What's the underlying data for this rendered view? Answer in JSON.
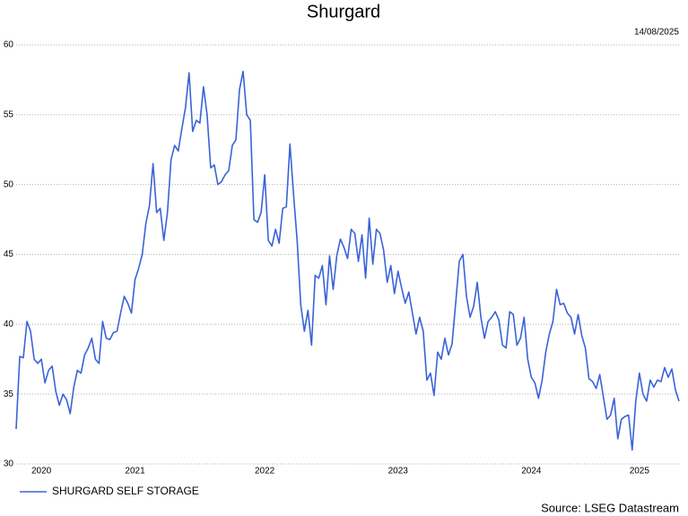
{
  "chart_data": {
    "type": "line",
    "title": "Shurgard",
    "date": "14/08/2025",
    "source": "Source: LSEG Datastream",
    "categories": [
      null,
      null,
      null,
      null,
      null,
      null,
      null,
      "2020",
      null,
      null,
      null,
      null,
      null,
      null,
      null,
      null,
      null,
      null,
      null,
      null,
      null,
      null,
      null,
      null,
      null,
      null,
      null,
      null,
      null,
      null,
      null,
      null,
      null,
      "2021",
      null,
      null,
      null,
      null,
      null,
      null,
      null,
      null,
      null,
      null,
      null,
      null,
      null,
      null,
      null,
      null,
      null,
      null,
      null,
      null,
      null,
      null,
      null,
      null,
      null,
      null,
      null,
      null,
      null,
      null,
      null,
      null,
      null,
      null,
      null,
      "2022",
      null,
      null,
      null,
      null,
      null,
      null,
      null,
      null,
      null,
      null,
      null,
      null,
      null,
      null,
      null,
      null,
      null,
      null,
      null,
      null,
      null,
      null,
      null,
      null,
      null,
      null,
      null,
      null,
      null,
      null,
      null,
      null,
      null,
      null,
      null,
      null,
      "2023",
      null,
      null,
      null,
      null,
      null,
      null,
      null,
      null,
      null,
      null,
      null,
      null,
      null,
      null,
      null,
      null,
      null,
      null,
      null,
      null,
      null,
      null,
      null,
      null,
      null,
      null,
      null,
      null,
      null,
      null,
      null,
      null,
      null,
      null,
      null,
      null,
      "2024",
      null,
      null,
      null,
      null,
      null,
      null,
      null,
      null,
      null,
      null,
      null,
      null,
      null,
      null,
      null,
      null,
      null,
      null,
      null,
      null,
      null,
      null,
      null,
      null,
      null,
      null,
      null,
      null,
      null,
      "2025",
      null,
      null,
      null,
      null,
      null,
      null,
      null,
      null,
      null,
      null,
      null
    ],
    "series": [
      {
        "name": "SHURGARD SELF STORAGE",
        "color": "#3a63d8",
        "values": [
          32.5,
          37.7,
          37.6,
          40.2,
          39.5,
          37.5,
          37.2,
          37.5,
          35.8,
          36.7,
          37.0,
          35.2,
          34.2,
          35.0,
          34.6,
          33.6,
          35.5,
          36.7,
          36.5,
          37.8,
          38.3,
          39.0,
          37.5,
          37.2,
          40.2,
          39.0,
          38.9,
          39.4,
          39.5,
          40.8,
          42.0,
          41.5,
          40.8,
          43.2,
          44.0,
          45.0,
          47.2,
          48.5,
          51.5,
          48.0,
          48.3,
          46.0,
          48.0,
          51.8,
          52.8,
          52.4,
          54.0,
          55.5,
          58.0,
          53.8,
          54.6,
          54.4,
          57.0,
          55.0,
          51.2,
          51.4,
          50.0,
          50.2,
          50.7,
          51.0,
          52.8,
          53.2,
          56.8,
          58.1,
          55.0,
          54.6,
          47.5,
          47.3,
          48.0,
          50.7,
          46.0,
          45.6,
          46.8,
          45.8,
          48.3,
          48.4,
          52.9,
          49.3,
          46.0,
          41.4,
          39.5,
          41.0,
          38.5,
          43.5,
          43.3,
          44.2,
          41.4,
          44.9,
          42.5,
          44.9,
          46.1,
          45.5,
          44.7,
          46.8,
          46.5,
          44.5,
          46.4,
          43.3,
          47.6,
          44.3,
          46.8,
          46.5,
          45.3,
          43.0,
          44.2,
          42.2,
          43.8,
          42.6,
          41.5,
          42.3,
          40.8,
          39.3,
          40.5,
          39.5,
          36.0,
          36.5,
          34.9,
          38.0,
          37.5,
          39.0,
          37.8,
          38.6,
          41.5,
          44.5,
          45.0,
          42.0,
          40.5,
          41.3,
          43.0,
          40.5,
          39.0,
          40.2,
          40.5,
          40.9,
          40.3,
          38.5,
          38.3,
          40.9,
          40.7,
          38.5,
          39.0,
          40.5,
          37.5,
          36.2,
          35.8,
          34.7,
          36.0,
          38.0,
          39.3,
          40.2,
          42.5,
          41.4,
          41.5,
          40.8,
          40.5,
          39.3,
          40.7,
          39.2,
          38.3,
          36.1,
          35.9,
          35.4,
          36.4,
          34.8,
          33.2,
          33.5,
          34.7,
          31.8,
          33.2,
          33.4,
          33.5,
          31.0,
          34.5,
          36.5,
          35.0,
          34.5,
          36.0,
          35.5,
          36.0,
          35.9,
          36.9,
          36.2,
          36.8,
          35.3,
          34.5
        ]
      }
    ],
    "ylim": [
      30,
      60
    ],
    "yticks": [
      30,
      35,
      40,
      45,
      50,
      55,
      60
    ],
    "grid": true,
    "legend": "bottom-left"
  }
}
